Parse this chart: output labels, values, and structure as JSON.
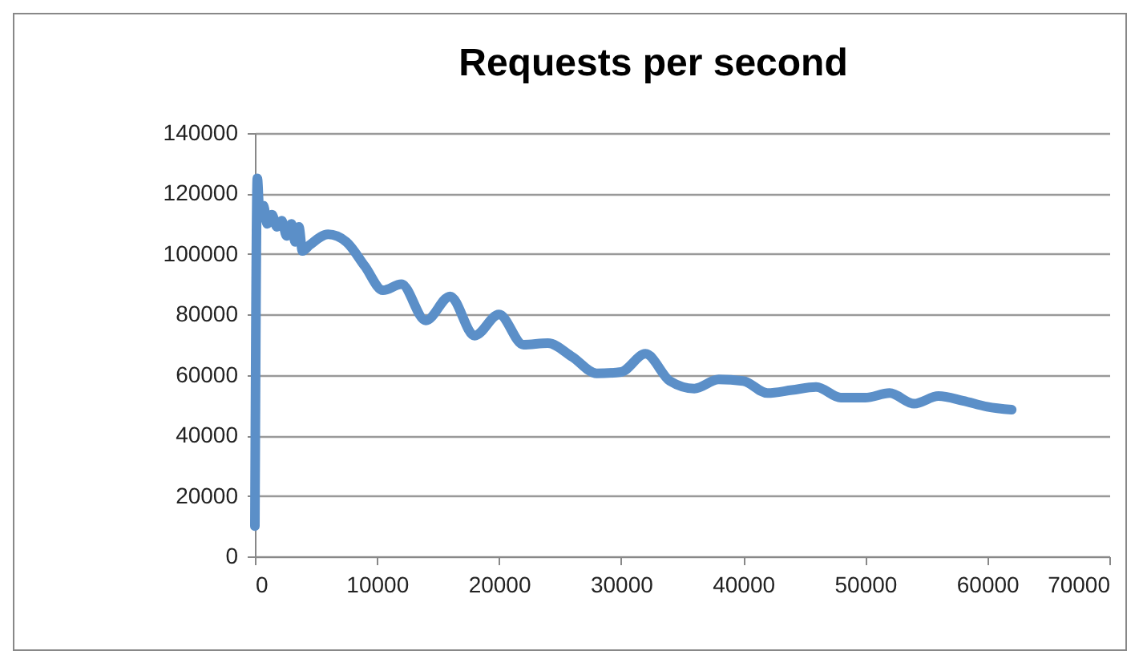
{
  "chart_data": {
    "type": "line",
    "title": "Requests per second",
    "x": [
      0,
      200,
      400,
      700,
      1000,
      1400,
      1800,
      2200,
      2600,
      3000,
      3300,
      3600,
      3900,
      4500,
      6000,
      7500,
      9000,
      10500,
      12000,
      14000,
      16000,
      18000,
      20000,
      22000,
      24000,
      26000,
      28000,
      30000,
      32000,
      34000,
      36000,
      38000,
      40000,
      42000,
      44000,
      46000,
      48000,
      50000,
      52000,
      54000,
      56000,
      58000,
      60000,
      62000
    ],
    "series": [
      {
        "color": "#5b8fc8",
        "values": [
          10000,
          125000,
          112000,
          116000,
          110000,
          113000,
          109000,
          111000,
          106000,
          110000,
          104000,
          109000,
          101000,
          103000,
          106500,
          104000,
          96000,
          88000,
          90000,
          78000,
          86000,
          73000,
          80000,
          70000,
          70500,
          66000,
          60500,
          61000,
          67000,
          58000,
          55500,
          58500,
          58000,
          54000,
          55000,
          56000,
          52500,
          52500,
          54000,
          50500,
          53000,
          51500,
          49500,
          48500
        ]
      }
    ],
    "xlim": [
      0,
      70000
    ],
    "xticks": [
      0,
      10000,
      20000,
      30000,
      40000,
      50000,
      60000,
      70000
    ],
    "ylim": [
      0,
      140000
    ],
    "yticks": [
      0,
      20000,
      40000,
      60000,
      80000,
      100000,
      120000,
      140000
    ],
    "grid": "y",
    "marker": "none",
    "line_style": "solid"
  }
}
